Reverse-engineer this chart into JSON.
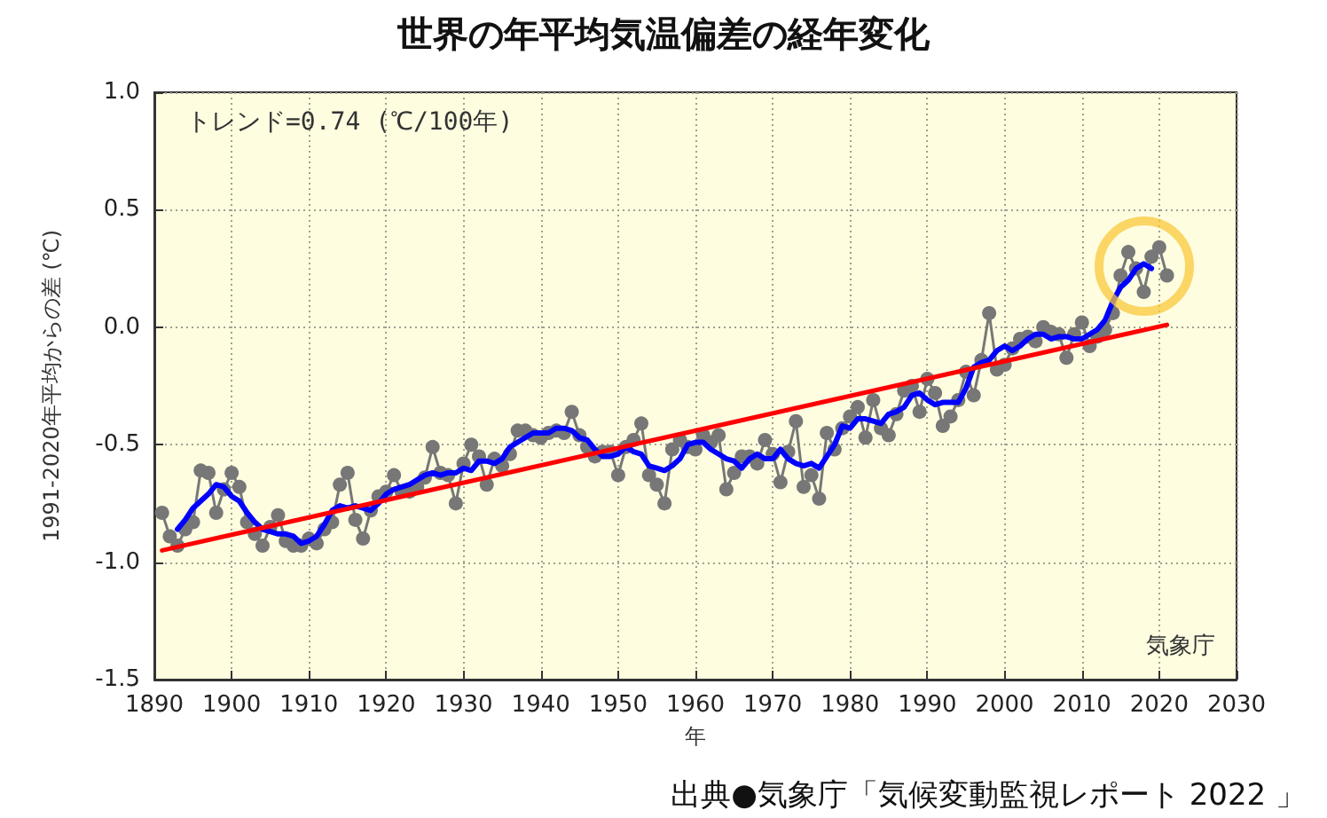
{
  "chart_data": {
    "type": "line",
    "title": "世界の年平均気温偏差の経年変化",
    "xlabel": "年",
    "ylabel": "1991-2020年平均からの差 (℃)",
    "annotations": [
      "トレンド=0.74 (℃/100年)",
      "気象庁",
      "出典●気象庁「気候変動監視レポート 2022 」"
    ],
    "xlim": [
      1890,
      2030
    ],
    "xticks": [
      1890,
      1900,
      1910,
      1920,
      1930,
      1940,
      1950,
      1960,
      1970,
      1980,
      1990,
      2000,
      2010,
      2020,
      2030
    ],
    "ylim": [
      -1.5,
      1.0
    ],
    "yticks": [
      -1.5,
      {
        "value": -1.0,
        "label": "-1.0"
      },
      -0.5,
      {
        "value": 0,
        "label": "0.0"
      },
      0.5,
      {
        "value": 1.0,
        "label": "1.0"
      }
    ],
    "grid": true,
    "marker": "circle",
    "line_style": "solid",
    "series": [
      {
        "color": "#777777",
        "x": [
          1891,
          1892,
          1893,
          1894,
          1895,
          1896,
          1897,
          1898,
          1899,
          1900,
          1901,
          1902,
          1903,
          1904,
          1905,
          1906,
          1907,
          1908,
          1909,
          1910,
          1911,
          1912,
          1913,
          1914,
          1915,
          1916,
          1917,
          1918,
          1919,
          1920,
          1921,
          1922,
          1923,
          1924,
          1925,
          1926,
          1927,
          1928,
          1929,
          1930,
          1931,
          1932,
          1933,
          1934,
          1935,
          1936,
          1937,
          1938,
          1939,
          1940,
          1941,
          1942,
          1943,
          1944,
          1945,
          1946,
          1947,
          1948,
          1949,
          1950,
          1951,
          1952,
          1953,
          1954,
          1955,
          1956,
          1957,
          1958,
          1959,
          1960,
          1961,
          1962,
          1963,
          1964,
          1965,
          1966,
          1967,
          1968,
          1969,
          1970,
          1971,
          1972,
          1973,
          1974,
          1975,
          1976,
          1977,
          1978,
          1979,
          1980,
          1981,
          1982,
          1983,
          1984,
          1985,
          1986,
          1987,
          1988,
          1989,
          1990,
          1991,
          1992,
          1993,
          1994,
          1995,
          1996,
          1997,
          1998,
          1999,
          2000,
          2001,
          2002,
          2003,
          2004,
          2005,
          2006,
          2007,
          2008,
          2009,
          2010,
          2011,
          2012,
          2013,
          2014,
          2015,
          2016,
          2017,
          2018,
          2019,
          2020,
          2021
        ],
        "values": [
          -0.79,
          -0.89,
          -0.93,
          -0.86,
          -0.83,
          -0.61,
          -0.62,
          -0.79,
          -0.69,
          -0.62,
          -0.68,
          -0.83,
          -0.88,
          -0.93,
          -0.85,
          -0.8,
          -0.91,
          -0.93,
          -0.93,
          -0.9,
          -0.92,
          -0.86,
          -0.83,
          -0.67,
          -0.62,
          -0.82,
          -0.9,
          -0.78,
          -0.72,
          -0.7,
          -0.63,
          -0.7,
          -0.7,
          -0.68,
          -0.64,
          -0.51,
          -0.62,
          -0.63,
          -0.75,
          -0.58,
          -0.5,
          -0.55,
          -0.67,
          -0.56,
          -0.59,
          -0.54,
          -0.44,
          -0.44,
          -0.46,
          -0.47,
          -0.45,
          -0.44,
          -0.45,
          -0.36,
          -0.46,
          -0.51,
          -0.55,
          -0.53,
          -0.53,
          -0.63,
          -0.51,
          -0.48,
          -0.41,
          -0.63,
          -0.67,
          -0.75,
          -0.52,
          -0.48,
          -0.51,
          -0.52,
          -0.46,
          -0.49,
          -0.46,
          -0.69,
          -0.62,
          -0.55,
          -0.55,
          -0.58,
          -0.48,
          -0.54,
          -0.66,
          -0.53,
          -0.4,
          -0.68,
          -0.63,
          -0.73,
          -0.45,
          -0.52,
          -0.43,
          -0.38,
          -0.34,
          -0.47,
          -0.31,
          -0.43,
          -0.46,
          -0.37,
          -0.27,
          -0.25,
          -0.36,
          -0.22,
          -0.28,
          -0.42,
          -0.38,
          -0.31,
          -0.19,
          -0.29,
          -0.14,
          0.06,
          -0.18,
          -0.16,
          -0.09,
          -0.05,
          -0.04,
          -0.06,
          0.0,
          -0.02,
          -0.03,
          -0.13,
          -0.03,
          0.02,
          -0.08,
          -0.04,
          -0.01,
          0.06,
          0.22,
          0.32,
          0.25,
          0.15,
          0.3,
          0.34,
          0.22
        ]
      },
      {
        "color": "#0000ff",
        "marker": "none",
        "x": [
          1893,
          1894,
          1895,
          1896,
          1897,
          1898,
          1899,
          1900,
          1901,
          1902,
          1903,
          1904,
          1905,
          1906,
          1907,
          1908,
          1909,
          1910,
          1911,
          1912,
          1913,
          1914,
          1915,
          1916,
          1917,
          1918,
          1919,
          1920,
          1921,
          1922,
          1923,
          1924,
          1925,
          1926,
          1927,
          1928,
          1929,
          1930,
          1931,
          1932,
          1933,
          1934,
          1935,
          1936,
          1937,
          1938,
          1939,
          1940,
          1941,
          1942,
          1943,
          1944,
          1945,
          1946,
          1947,
          1948,
          1949,
          1950,
          1951,
          1952,
          1953,
          1954,
          1955,
          1956,
          1957,
          1958,
          1959,
          1960,
          1961,
          1962,
          1963,
          1964,
          1965,
          1966,
          1967,
          1968,
          1969,
          1970,
          1971,
          1972,
          1973,
          1974,
          1975,
          1976,
          1977,
          1978,
          1979,
          1980,
          1981,
          1982,
          1983,
          1984,
          1985,
          1986,
          1987,
          1988,
          1989,
          1990,
          1991,
          1992,
          1993,
          1994,
          1995,
          1996,
          1997,
          1998,
          1999,
          2000,
          2001,
          2002,
          2003,
          2004,
          2005,
          2006,
          2007,
          2008,
          2009,
          2010,
          2011,
          2012,
          2013,
          2014,
          2015,
          2016,
          2017,
          2018,
          2019
        ],
        "values": [
          -0.86,
          -0.82,
          -0.77,
          -0.74,
          -0.71,
          -0.67,
          -0.68,
          -0.72,
          -0.74,
          -0.79,
          -0.83,
          -0.86,
          -0.87,
          -0.88,
          -0.88,
          -0.89,
          -0.92,
          -0.91,
          -0.89,
          -0.84,
          -0.78,
          -0.76,
          -0.77,
          -0.76,
          -0.77,
          -0.78,
          -0.75,
          -0.71,
          -0.69,
          -0.68,
          -0.67,
          -0.65,
          -0.63,
          -0.62,
          -0.63,
          -0.62,
          -0.62,
          -0.6,
          -0.61,
          -0.57,
          -0.57,
          -0.58,
          -0.56,
          -0.51,
          -0.49,
          -0.47,
          -0.45,
          -0.45,
          -0.45,
          -0.43,
          -0.43,
          -0.44,
          -0.47,
          -0.48,
          -0.52,
          -0.55,
          -0.55,
          -0.54,
          -0.51,
          -0.53,
          -0.54,
          -0.59,
          -0.6,
          -0.61,
          -0.59,
          -0.56,
          -0.5,
          -0.49,
          -0.49,
          -0.52,
          -0.54,
          -0.56,
          -0.57,
          -0.6,
          -0.56,
          -0.54,
          -0.56,
          -0.56,
          -0.52,
          -0.56,
          -0.58,
          -0.59,
          -0.58,
          -0.6,
          -0.55,
          -0.5,
          -0.42,
          -0.43,
          -0.39,
          -0.39,
          -0.4,
          -0.41,
          -0.37,
          -0.36,
          -0.34,
          -0.29,
          -0.28,
          -0.31,
          -0.33,
          -0.32,
          -0.32,
          -0.32,
          -0.26,
          -0.17,
          -0.15,
          -0.14,
          -0.1,
          -0.08,
          -0.1,
          -0.08,
          -0.05,
          -0.03,
          -0.03,
          -0.05,
          -0.04,
          -0.04,
          -0.05,
          -0.05,
          -0.03,
          -0.01,
          0.03,
          0.11,
          0.17,
          0.2,
          0.25,
          0.27,
          0.25
        ]
      },
      {
        "color": "#ff0000",
        "marker": "none",
        "x": [
          1891,
          2021
        ],
        "values": [
          -0.95,
          0.01
        ]
      }
    ]
  }
}
